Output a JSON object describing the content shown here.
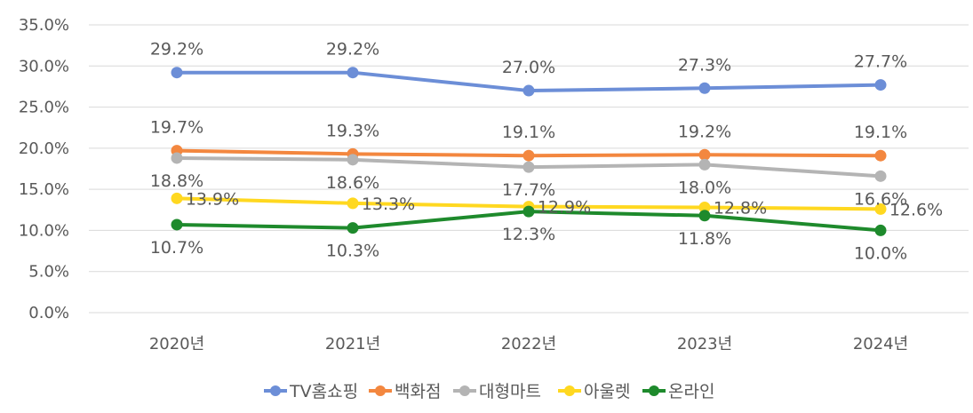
{
  "chart_data": {
    "type": "line",
    "categories": [
      "2020년",
      "2021년",
      "2022년",
      "2023년",
      "2024년"
    ],
    "ylim": [
      0,
      35
    ],
    "ytick_values": [
      0,
      5,
      10,
      15,
      20,
      25,
      30,
      35
    ],
    "ytick_labels": [
      "0.0%",
      "5.0%",
      "10.0%",
      "15.0%",
      "20.0%",
      "25.0%",
      "30.0%",
      "35.0%"
    ],
    "grid": true,
    "legend_position": "bottom",
    "series": [
      {
        "name": "TV홈쇼핑",
        "color": "#6c8ed7",
        "values": [
          29.2,
          29.2,
          27.0,
          27.3,
          27.7
        ],
        "labels": [
          "29.2%",
          "29.2%",
          "27.0%",
          "27.3%",
          "27.7%"
        ]
      },
      {
        "name": "백화점",
        "color": "#f3873f",
        "values": [
          19.7,
          19.3,
          19.1,
          19.2,
          19.1
        ],
        "labels": [
          "19.7%",
          "19.3%",
          "19.1%",
          "19.2%",
          "19.1%"
        ]
      },
      {
        "name": "대형마트",
        "color": "#b4b4b4",
        "values": [
          18.8,
          18.6,
          17.7,
          18.0,
          16.6
        ],
        "labels": [
          "18.8%",
          "18.6%",
          "17.7%",
          "18.0%",
          "16.6%"
        ]
      },
      {
        "name": "아울렛",
        "color": "#ffd820",
        "values": [
          13.9,
          13.3,
          12.9,
          12.8,
          12.6
        ],
        "labels": [
          "13.9%",
          "13.3%",
          "12.9%",
          "12.8%",
          "12.6%"
        ]
      },
      {
        "name": "온라인",
        "color": "#1e8a2c",
        "values": [
          10.7,
          10.3,
          12.3,
          11.8,
          10.0
        ],
        "labels": [
          "10.7%",
          "10.3%",
          "12.3%",
          "11.8%",
          "10.0%"
        ]
      }
    ]
  }
}
